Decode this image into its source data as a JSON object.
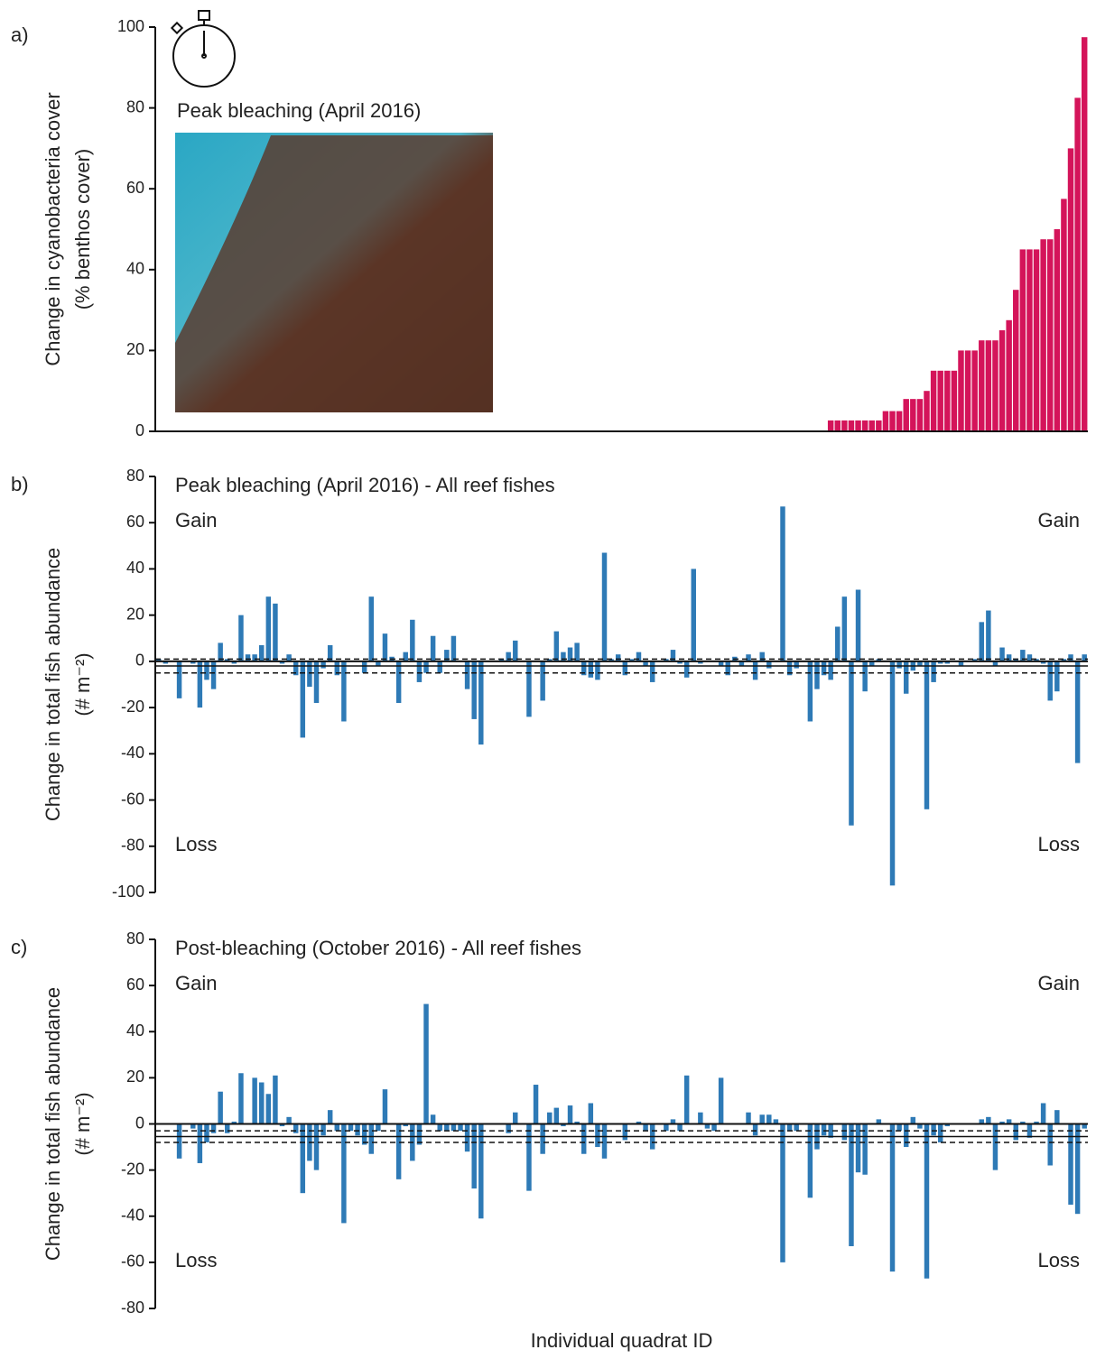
{
  "chart_data": [
    {
      "type": "bar",
      "panel_label": "a)",
      "subtitle": "Peak bleaching (April 2016)",
      "ylabel": [
        "Change in cyanobacteria cover",
        "(% benthos cover)"
      ],
      "color": "#d4145a",
      "ylim": [
        0,
        100
      ],
      "yticks": [
        0,
        20,
        40,
        60,
        80,
        100
      ],
      "values": [
        0,
        0,
        0,
        0,
        0,
        0,
        0,
        0,
        0,
        0,
        0,
        0,
        0,
        0,
        0,
        0,
        0,
        0,
        0,
        0,
        0,
        0,
        0,
        0,
        0,
        0,
        0,
        0,
        0,
        0,
        0,
        0,
        0,
        0,
        0,
        0,
        0,
        0,
        0,
        0,
        0,
        0,
        0,
        0,
        0,
        0,
        0,
        0,
        0,
        0,
        0,
        0,
        0,
        0,
        0,
        0,
        0,
        0,
        0,
        0,
        0,
        0,
        0,
        0,
        0,
        0,
        0,
        0,
        0,
        0,
        0,
        0,
        0,
        0,
        0,
        0,
        0,
        0,
        0,
        0,
        0,
        0,
        0,
        0,
        0,
        0,
        0,
        0,
        0,
        0,
        0,
        0,
        0,
        0,
        0,
        0,
        0,
        0,
        2.7,
        2.7,
        2.7,
        2.7,
        2.7,
        2.7,
        2.7,
        2.7,
        5,
        5,
        5,
        8,
        8,
        8,
        10,
        15,
        15,
        15,
        15,
        20,
        20,
        20,
        22.5,
        22.5,
        22.5,
        25,
        27.5,
        35,
        45,
        45,
        45,
        47.5,
        47.5,
        50,
        57.5,
        70,
        82.5,
        97.5
      ]
    },
    {
      "type": "bar",
      "panel_label": "b)",
      "title": "Peak bleaching (April 2016) - All reef fishes",
      "ylabel": [
        "Change in total fish abundance",
        "(# m⁻²)"
      ],
      "gain_label": "Gain",
      "loss_label": "Loss",
      "color": "#2e7ab6",
      "ylim": [
        -100,
        80
      ],
      "yticks": [
        80,
        60,
        40,
        20,
        0,
        -20,
        -40,
        -60,
        -80,
        -100
      ],
      "mean_line": -2,
      "ci_lines": [
        -5,
        1
      ],
      "values": [
        1,
        -1,
        0,
        -16,
        0,
        -1,
        -20,
        -8,
        -12,
        8,
        1,
        -1,
        20,
        3,
        3,
        7,
        28,
        25,
        -1,
        3,
        -6,
        -33,
        -11,
        -18,
        -3,
        7,
        -6,
        -26,
        0,
        0,
        -5,
        28,
        -2,
        12,
        2,
        -18,
        4,
        18,
        -9,
        -5,
        11,
        -5,
        5,
        11,
        0,
        -12,
        -25,
        -36,
        0,
        0,
        1,
        4,
        9,
        0,
        -24,
        0,
        -17,
        1,
        13,
        4,
        6,
        8,
        -6,
        -7,
        -8,
        47,
        1,
        3,
        -6,
        1,
        4,
        -2,
        -9,
        0,
        1,
        5,
        -1,
        -7,
        40,
        -1,
        0,
        0,
        -2,
        -6,
        2,
        -2,
        3,
        -8,
        4,
        -3,
        0,
        67,
        -6,
        -3,
        0,
        -26,
        -12,
        -6,
        -8,
        15,
        28,
        -71,
        31,
        -13,
        -2,
        1,
        0,
        -97,
        -3,
        -14,
        -4,
        -2,
        -64,
        -9,
        -1,
        -1,
        0,
        -2,
        0,
        1,
        17,
        22,
        -2,
        6,
        3,
        1,
        5,
        3,
        1,
        -1,
        -17,
        -13,
        1,
        3,
        -44,
        3
      ]
    },
    {
      "type": "bar",
      "panel_label": "c)",
      "title": "Post-bleaching (October 2016) - All reef fishes",
      "ylabel": [
        "Change in total fish abundance",
        "(# m⁻²)"
      ],
      "gain_label": "Gain",
      "loss_label": "Loss",
      "xlabel": "Individual quadrat ID",
      "color": "#2e7ab6",
      "ylim": [
        -80,
        80
      ],
      "yticks": [
        80,
        60,
        40,
        20,
        0,
        -20,
        -40,
        -60,
        -80
      ],
      "mean_line": -5.5,
      "ci_lines": [
        -8,
        -3
      ],
      "values": [
        0,
        0,
        0,
        -15,
        0,
        -2,
        -17,
        -8,
        -4,
        14,
        -4,
        1,
        22,
        0,
        20,
        18,
        13,
        21,
        -1,
        3,
        -4,
        -30,
        -16,
        -20,
        -5,
        6,
        -3,
        -43,
        -3,
        -5,
        -9,
        -13,
        -3,
        15,
        0,
        -24,
        -1,
        -16,
        -9,
        52,
        4,
        -3,
        -3,
        -3,
        -3,
        -12,
        -28,
        -41,
        0,
        0,
        0,
        -4,
        5,
        0,
        -29,
        17,
        -13,
        5,
        7,
        -1,
        8,
        1,
        -13,
        9,
        -10,
        -15,
        0,
        0,
        -7,
        0,
        1,
        -3,
        -11,
        0,
        -3,
        2,
        -3,
        21,
        0,
        5,
        -2,
        -3,
        20,
        0,
        0,
        0,
        5,
        -5,
        4,
        4,
        2,
        -60,
        -3,
        -3,
        0,
        -32,
        -11,
        -5,
        -6,
        0,
        -7,
        -53,
        -21,
        -22,
        0,
        2,
        0,
        -64,
        -3,
        -10,
        3,
        -2,
        -67,
        -5,
        -8,
        -1,
        0,
        0,
        0,
        0,
        2,
        3,
        -20,
        1,
        2,
        -7,
        1,
        -6,
        1,
        9,
        -18,
        6,
        0,
        -35,
        -39,
        -2
      ]
    }
  ]
}
